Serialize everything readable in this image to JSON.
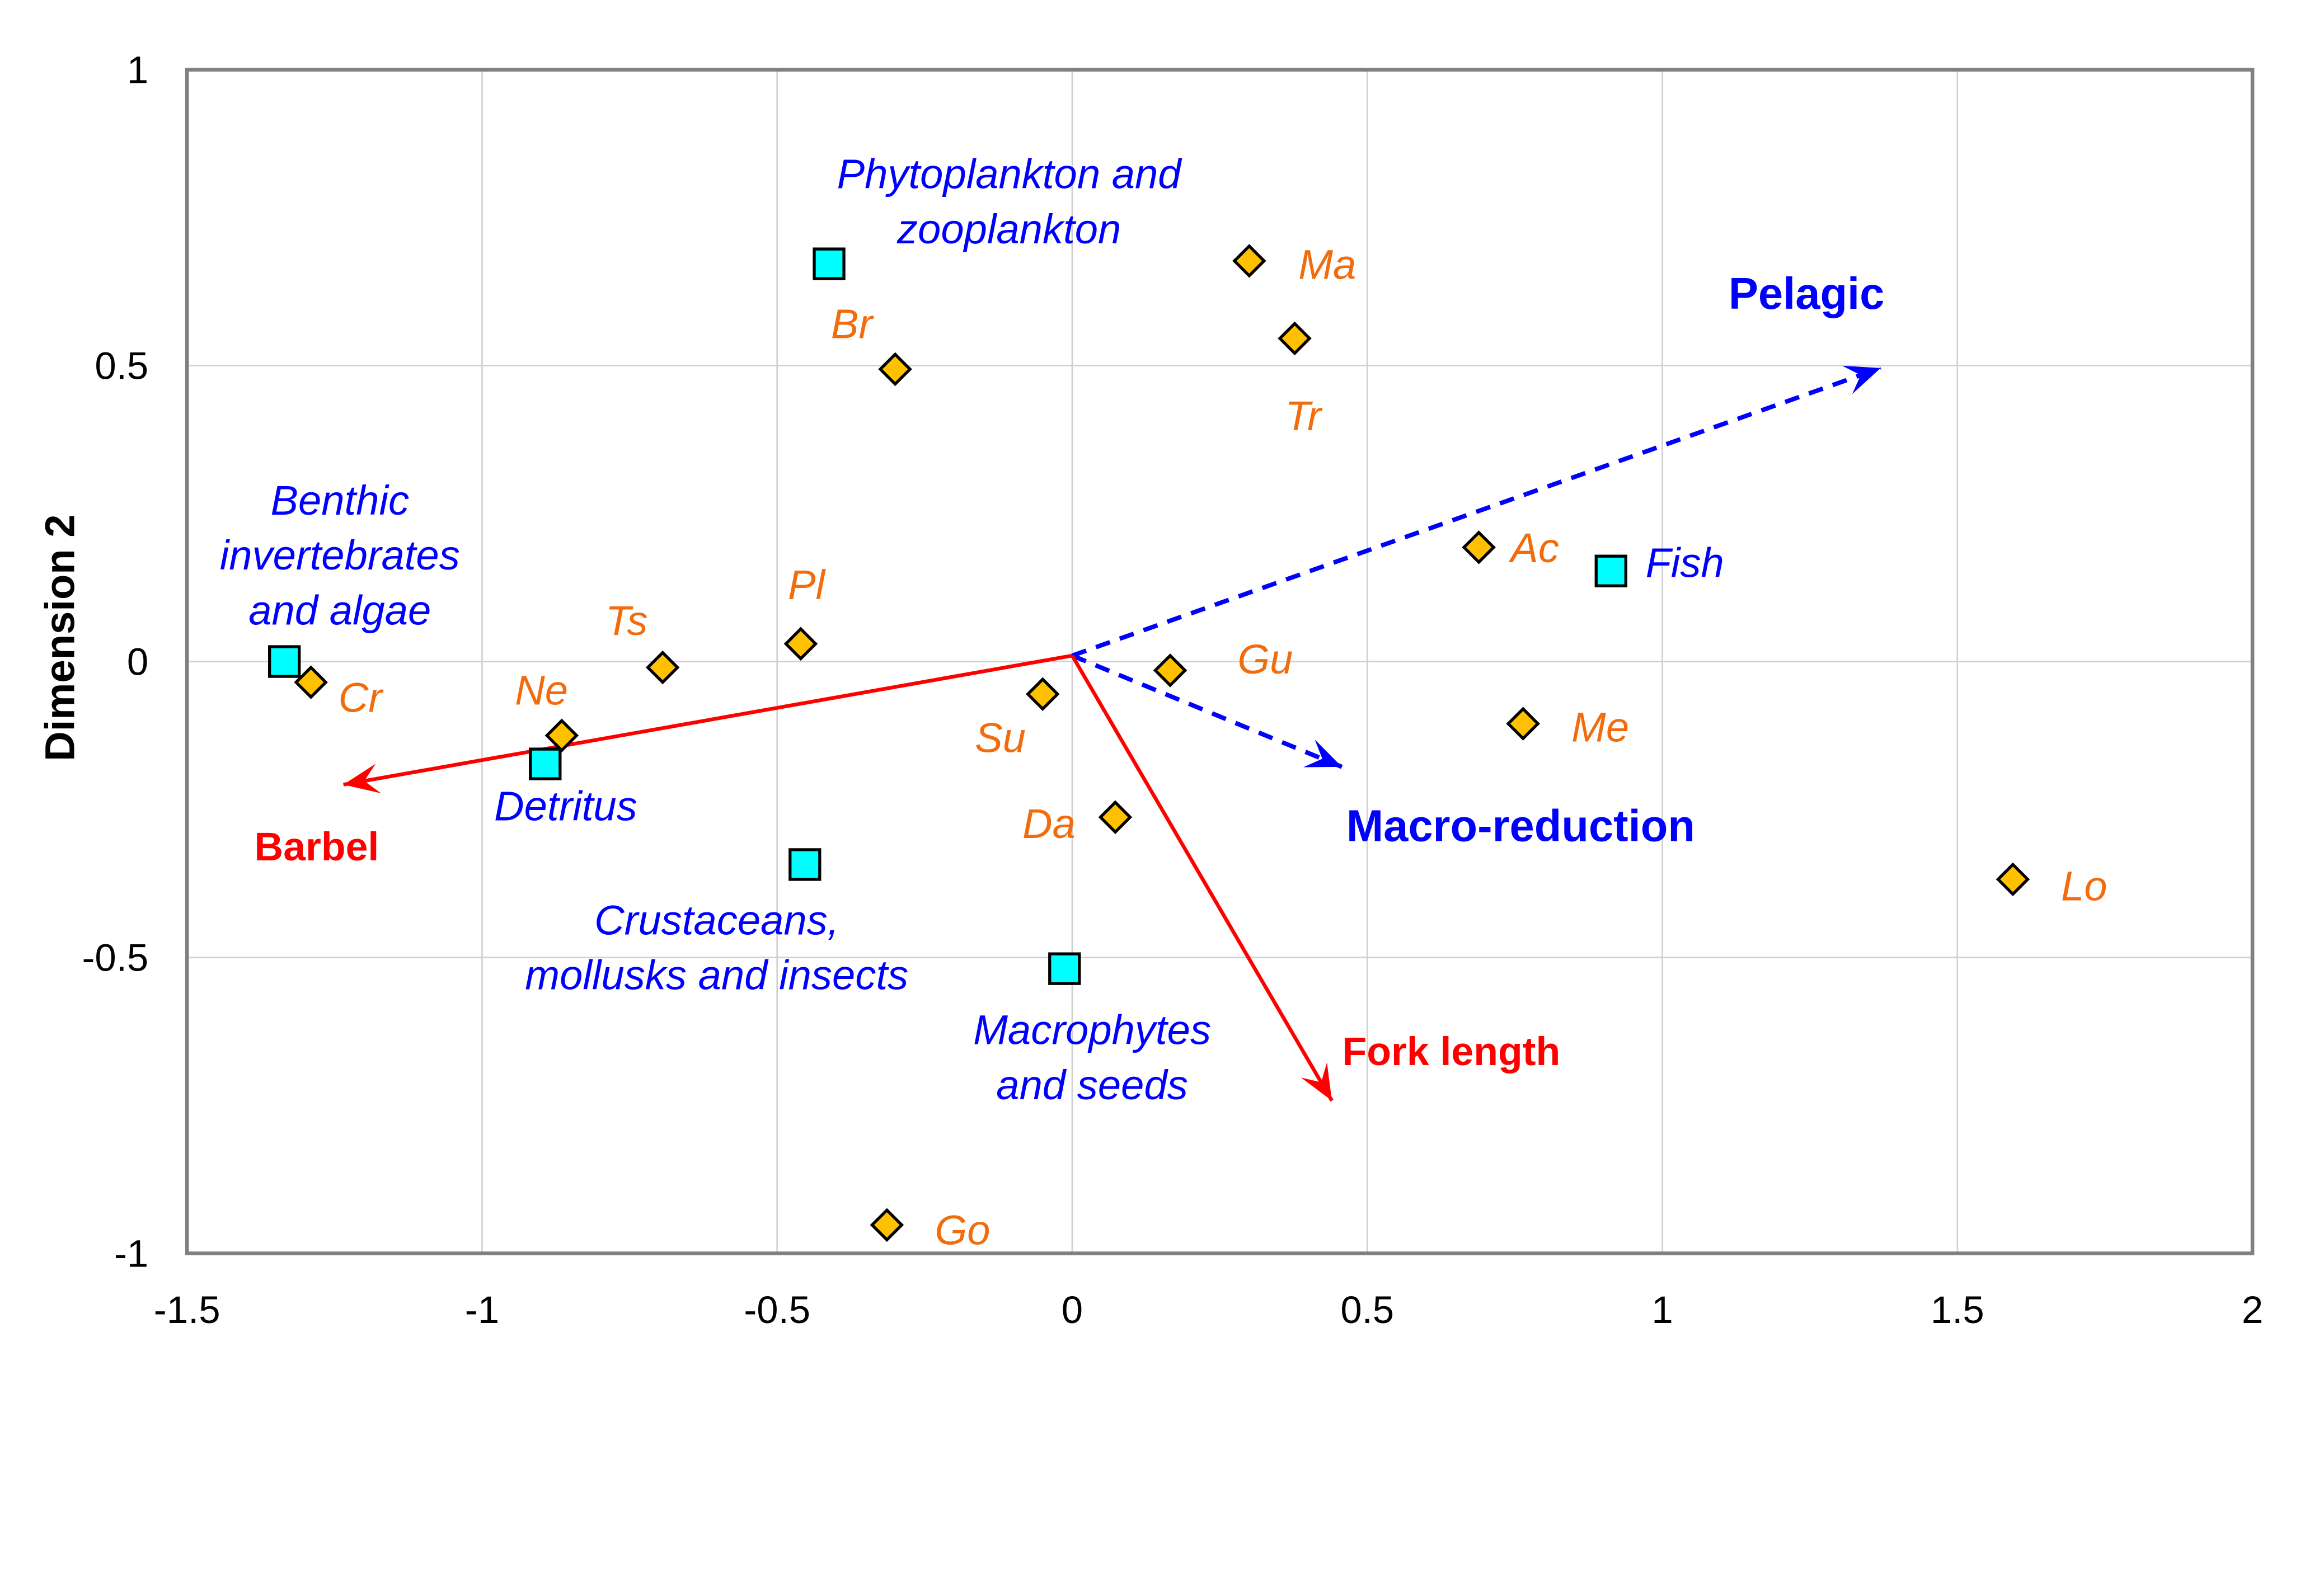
{
  "chart_data": {
    "type": "scatter",
    "title": "",
    "xlabel": "",
    "ylabel": "Dimension 2",
    "xlim": [
      -1.5,
      2
    ],
    "ylim": [
      -1,
      1
    ],
    "x_ticks": [
      "-1.5",
      "-1",
      "-0.5",
      "0",
      "0.5",
      "1",
      "1.5",
      "2"
    ],
    "y_ticks": [
      "1",
      "0.5",
      "0",
      "-0.5",
      "-1"
    ],
    "grid": true,
    "colors": {
      "species_fill": "#ffc000",
      "food_fill": "#00ffff",
      "species_text": "#f26c0d",
      "food_text": "#0000ff",
      "red_vector": "#ff0000",
      "blue_vector": "#0000ff",
      "grid": "#d0d0d0",
      "frame": "#808080"
    },
    "species": [
      {
        "label": "Cr",
        "x": -1.29,
        "y": -0.035
      },
      {
        "label": "Ne",
        "x": -0.865,
        "y": -0.125
      },
      {
        "label": "Ts",
        "x": -0.694,
        "y": -0.01
      },
      {
        "label": "Pl",
        "x": -0.46,
        "y": 0.03
      },
      {
        "label": "Br",
        "x": -0.3,
        "y": 0.494
      },
      {
        "label": "Ma",
        "x": 0.3,
        "y": 0.677
      },
      {
        "label": "Tr",
        "x": 0.377,
        "y": 0.546
      },
      {
        "label": "Ac",
        "x": 0.689,
        "y": 0.193
      },
      {
        "label": "Me",
        "x": 0.764,
        "y": -0.105
      },
      {
        "label": "Gu",
        "x": 0.166,
        "y": -0.015
      },
      {
        "label": "Su",
        "x": -0.05,
        "y": -0.055
      },
      {
        "label": "Da",
        "x": 0.073,
        "y": -0.263
      },
      {
        "label": "Lo",
        "x": 1.594,
        "y": -0.368
      },
      {
        "label": "Go",
        "x": -0.314,
        "y": -0.952
      }
    ],
    "food_items": [
      {
        "lines": [
          "Benthic",
          "invertebrates",
          "and algae"
        ],
        "x": -1.335,
        "y": 0.0
      },
      {
        "lines": [
          "Detritus"
        ],
        "x": -0.893,
        "y": -0.173
      },
      {
        "lines": [
          "Crustaceans,",
          "mollusks and insects"
        ],
        "x": -0.453,
        "y": -0.343
      },
      {
        "lines": [
          "Macrophytes",
          "and seeds"
        ],
        "x": -0.013,
        "y": -0.519
      },
      {
        "lines": [
          "Phytoplankton and",
          "zooplankton"
        ],
        "x": -0.412,
        "y": 0.672
      },
      {
        "lines": [
          "Fish"
        ],
        "x": 0.913,
        "y": 0.153
      }
    ],
    "vectors": [
      {
        "label": "Pelagic",
        "from": [
          0,
          0.01
        ],
        "to": [
          1.37,
          0.496
        ],
        "color": "#0000ff",
        "style": "dashed"
      },
      {
        "label": "Macro-reduction",
        "from": [
          0,
          0.01
        ],
        "to": [
          0.457,
          -0.178
        ],
        "color": "#0000ff",
        "style": "dashed"
      },
      {
        "label": "Barbel",
        "from": [
          0,
          0.01
        ],
        "to": [
          -1.235,
          -0.208
        ],
        "color": "#ff0000",
        "style": "solid"
      },
      {
        "label": "Fork length",
        "from": [
          0,
          0.01
        ],
        "to": [
          0.44,
          -0.742
        ],
        "color": "#ff0000",
        "style": "solid"
      }
    ]
  }
}
